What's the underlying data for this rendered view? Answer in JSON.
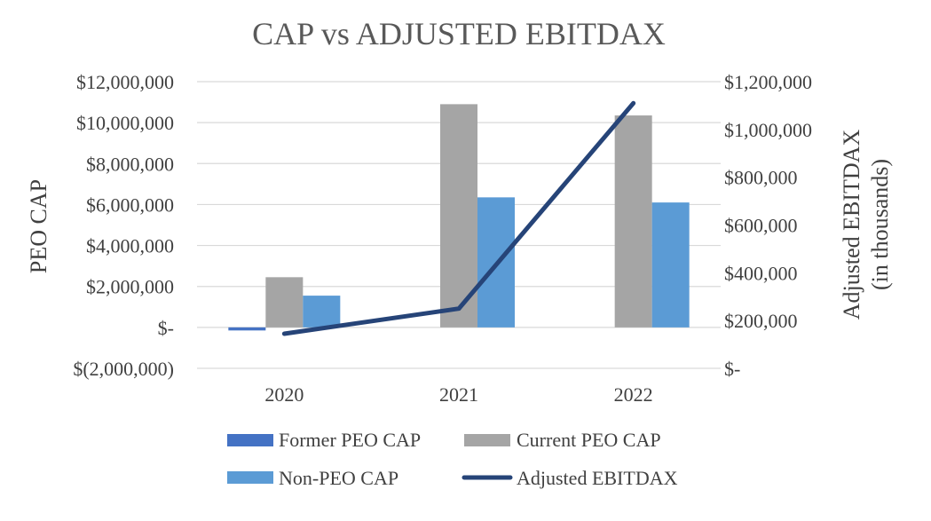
{
  "chart_data": {
    "type": "bar",
    "title": "CAP vs ADJUSTED EBITDAX",
    "categories": [
      "2020",
      "2021",
      "2022"
    ],
    "ylabel_left": "PEO CAP",
    "ylabel_right_line1": "Adjusted EBITDAX",
    "ylabel_right_line2": "(in thousands)",
    "ylim_left": [
      -2000000,
      12000000
    ],
    "ylim_right": [
      0,
      1200000
    ],
    "left_ticks": [
      12000000,
      10000000,
      8000000,
      6000000,
      4000000,
      2000000,
      0,
      -2000000
    ],
    "left_tick_labels": [
      "$12,000,000",
      "$10,000,000",
      "$8,000,000",
      "$6,000,000",
      "$4,000,000",
      "$2,000,000",
      "$-",
      "$(2,000,000)"
    ],
    "right_ticks": [
      1200000,
      1000000,
      800000,
      600000,
      400000,
      200000,
      0
    ],
    "right_tick_labels": [
      "$1,200,000",
      "$1,000,000",
      "$800,000",
      "$600,000",
      "$400,000",
      "$200,000",
      "$-"
    ],
    "series": [
      {
        "name": "Former PEO CAP",
        "axis": "left",
        "kind": "bar",
        "color": "#4472C4",
        "values": [
          -150000,
          0,
          0
        ]
      },
      {
        "name": "Current PEO CAP",
        "axis": "left",
        "kind": "bar",
        "color": "#A5A5A5",
        "values": [
          2450000,
          10900000,
          10350000
        ]
      },
      {
        "name": "Non-PEO CAP",
        "axis": "left",
        "kind": "bar",
        "color": "#5B9BD5",
        "values": [
          1550000,
          6350000,
          6100000
        ]
      },
      {
        "name": "Adjusted EBITDAX",
        "axis": "right",
        "kind": "line",
        "color": "#264478",
        "values": [
          145000,
          250000,
          1110000
        ]
      }
    ],
    "grid": true,
    "legend_position": "bottom"
  }
}
